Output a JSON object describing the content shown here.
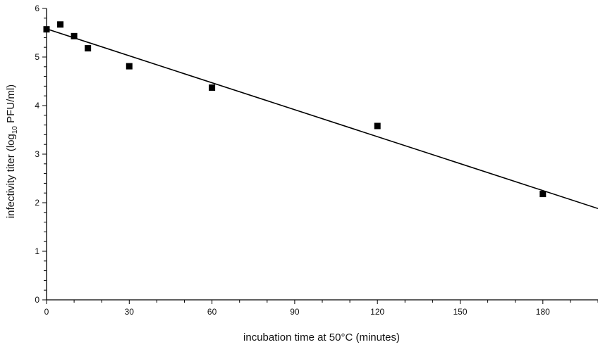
{
  "chart_data": {
    "type": "scatter",
    "xlabel": "incubation time at 50°C (minutes)",
    "ylabel": {
      "prefix": "infectivity titer (log",
      "subscript": "10",
      "suffix": " PFU/ml)"
    },
    "xlim": [
      0,
      200
    ],
    "ylim": [
      0,
      6
    ],
    "xticks": [
      0,
      30,
      60,
      90,
      120,
      150,
      180
    ],
    "yticks": [
      0,
      1,
      2,
      3,
      4,
      5,
      6
    ],
    "grid": false,
    "series": [
      {
        "x": [
          0,
          5,
          10,
          15,
          30,
          60,
          120,
          180
        ],
        "y": [
          5.57,
          5.67,
          5.43,
          5.18,
          4.81,
          4.37,
          3.58,
          2.18
        ],
        "marker": "square",
        "color": "#000000"
      }
    ],
    "fit_line": {
      "x": [
        0,
        200
      ],
      "y": [
        5.58,
        1.88
      ],
      "color": "#000000"
    }
  }
}
